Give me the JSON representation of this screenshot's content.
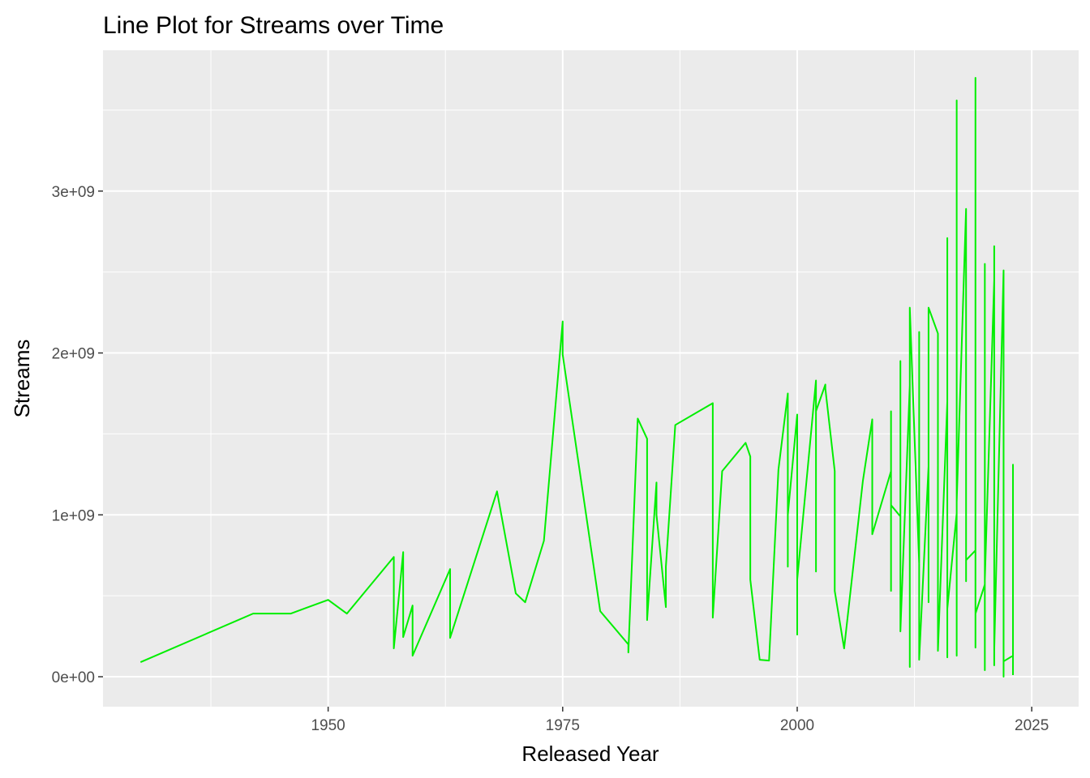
{
  "chart_data": {
    "type": "line",
    "title": "Line Plot for Streams over Time",
    "xlabel": "Released Year",
    "ylabel": "Streams",
    "xlim": [
      1926,
      2030
    ],
    "ylim": [
      -185000000,
      3870000000
    ],
    "x_ticks": [
      1950,
      1975,
      2000,
      2025
    ],
    "x_tick_labels": [
      "1950",
      "1975",
      "2000",
      "2025"
    ],
    "y_ticks": [
      0,
      1000000000,
      2000000000,
      3000000000
    ],
    "y_tick_labels": [
      "0e+00",
      "1e+09",
      "2e+09",
      "3e+09"
    ],
    "grid": true,
    "legend": "none",
    "colors": {
      "panel_background": "#ebebeb",
      "grid": "#ffffff",
      "line": "#00ee00",
      "tick_mark": "#333333",
      "tick_label": "#4d4d4d"
    },
    "series": [
      {
        "x": [
          1930,
          1942,
          1946,
          1950,
          1952,
          1957,
          1957,
          1958,
          1958,
          1959,
          1959,
          1959,
          1963,
          1963,
          1968,
          1970,
          1971,
          1973,
          1975,
          1975,
          1979,
          1982,
          1982,
          1983,
          1984,
          1984,
          1985,
          1985,
          1986,
          1986,
          1987,
          1991,
          1991,
          1992,
          1994.5,
          1995,
          1995,
          1996,
          1997,
          1998,
          1999,
          1999,
          1999,
          2000,
          2000,
          2000,
          2002,
          2002,
          2002,
          2003,
          2003,
          2004,
          2004,
          2005,
          2007,
          2008,
          2008,
          2010,
          2010,
          2010,
          2010,
          2011,
          2011,
          2011,
          2012,
          2012,
          2012,
          2013,
          2013,
          2013,
          2014,
          2014,
          2014,
          2015,
          2015,
          2016,
          2016,
          2016,
          2016,
          2017,
          2017,
          2017,
          2017,
          2018,
          2018,
          2018,
          2019,
          2019,
          2019,
          2019,
          2020,
          2020,
          2020,
          2020,
          2021,
          2021,
          2021,
          2021,
          2022,
          2022,
          2022,
          2022,
          2023,
          2023,
          2023
        ],
        "y": [
          90000000,
          390000000,
          390000000,
          475000000,
          390000000,
          740000000,
          175000000,
          770000000,
          245000000,
          440000000,
          130000000,
          130000000,
          665000000,
          240000000,
          1145000000,
          515000000,
          460000000,
          840000000,
          2195000000,
          1990000000,
          405000000,
          200000000,
          150000000,
          1595000000,
          1470000000,
          350000000,
          1200000000,
          1000000000,
          430000000,
          680000000,
          1555000000,
          1690000000,
          365000000,
          1270000000,
          1445000000,
          1360000000,
          600000000,
          105000000,
          100000000,
          1280000000,
          1750000000,
          680000000,
          1000000000,
          1620000000,
          260000000,
          600000000,
          1830000000,
          650000000,
          1640000000,
          1805000000,
          1780000000,
          1270000000,
          530000000,
          175000000,
          1210000000,
          1590000000,
          880000000,
          1270000000,
          1640000000,
          530000000,
          1060000000,
          990000000,
          1950000000,
          280000000,
          1800000000,
          60000000,
          2280000000,
          700000000,
          2130000000,
          105000000,
          1300000000,
          460000000,
          2280000000,
          2120000000,
          160000000,
          1700000000,
          2710000000,
          120000000,
          420000000,
          1010000000,
          3560000000,
          130000000,
          1080000000,
          2890000000,
          590000000,
          720000000,
          780000000,
          3700000000,
          180000000,
          390000000,
          570000000,
          2550000000,
          40000000,
          600000000,
          2450000000,
          70000000,
          2660000000,
          160000000,
          2510000000,
          0,
          2300000000,
          95000000,
          130000000,
          1310000000,
          10000000
        ]
      }
    ]
  }
}
